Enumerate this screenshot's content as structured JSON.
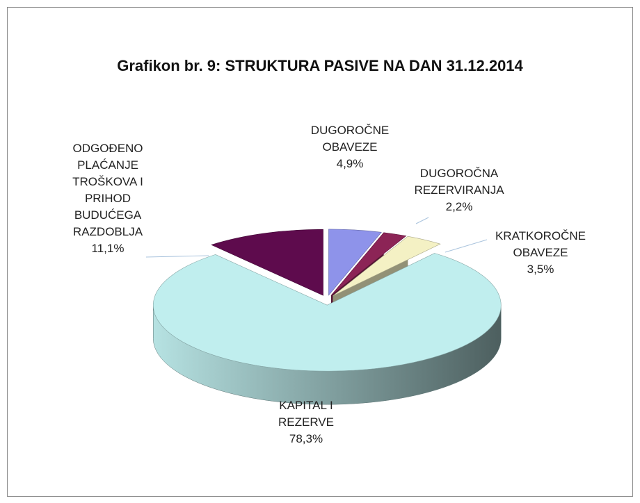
{
  "chart_data": {
    "type": "pie",
    "title": "Grafikon br. 9: STRUKTURA PASIVE NA DAN 31.12.2014",
    "categories": [
      "DUGOROČNE OBAVEZE",
      "DUGOROČNA REZERVIRANJA",
      "KRATKOROČNE OBAVEZE",
      "KAPITAL I REZERVE",
      "ODGOĐENO PLAĆANJE TROŠKOVA I PRIHOD BUDUĆEGA RAZDOBLJA"
    ],
    "values": [
      4.9,
      2.2,
      3.5,
      78.3,
      11.1
    ],
    "value_labels": [
      "4,9%",
      "2,2%",
      "3,5%",
      "78,3%",
      "11,1%"
    ],
    "colors": [
      "#8e93ea",
      "#8c2456",
      "#f4f1c4",
      "#c0eeee",
      "#5e0b4d"
    ]
  }
}
